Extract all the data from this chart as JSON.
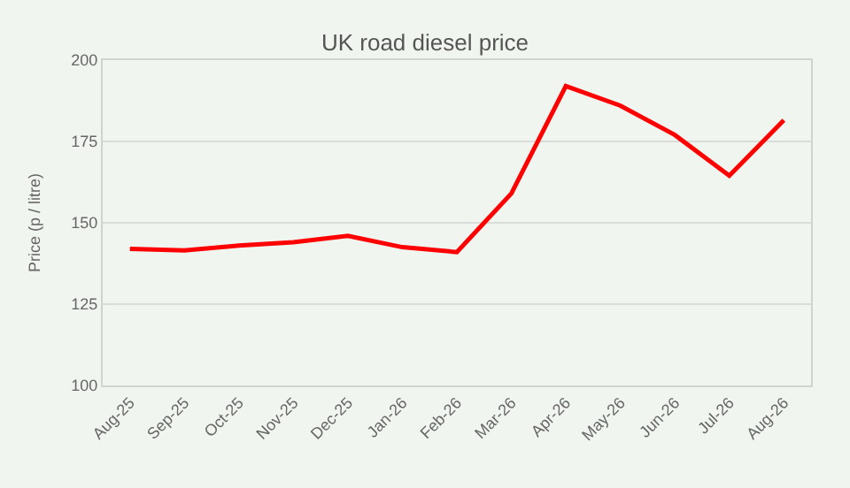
{
  "chart_data": {
    "type": "line",
    "title": "UK road diesel price",
    "ylabel": "Price (p / litre)",
    "categories": [
      "Aug-25",
      "Sep-25",
      "Oct-25",
      "Nov-25",
      "Dec-25",
      "Jan-26",
      "Feb-26",
      "Mar-26",
      "Apr-26",
      "May-26",
      "Jun-26",
      "Jul-26",
      "Aug-26"
    ],
    "series": [
      {
        "color": "#ff0000",
        "values": [
          142,
          141.5,
          143,
          144,
          146,
          142.5,
          141,
          159,
          192,
          186,
          177,
          164.5,
          181.5
        ]
      }
    ],
    "ylim": [
      100,
      200
    ],
    "yticks": [
      100,
      125,
      150,
      175,
      200
    ],
    "grid": "y",
    "legend": false,
    "marker": "none",
    "line_style": "solid"
  }
}
